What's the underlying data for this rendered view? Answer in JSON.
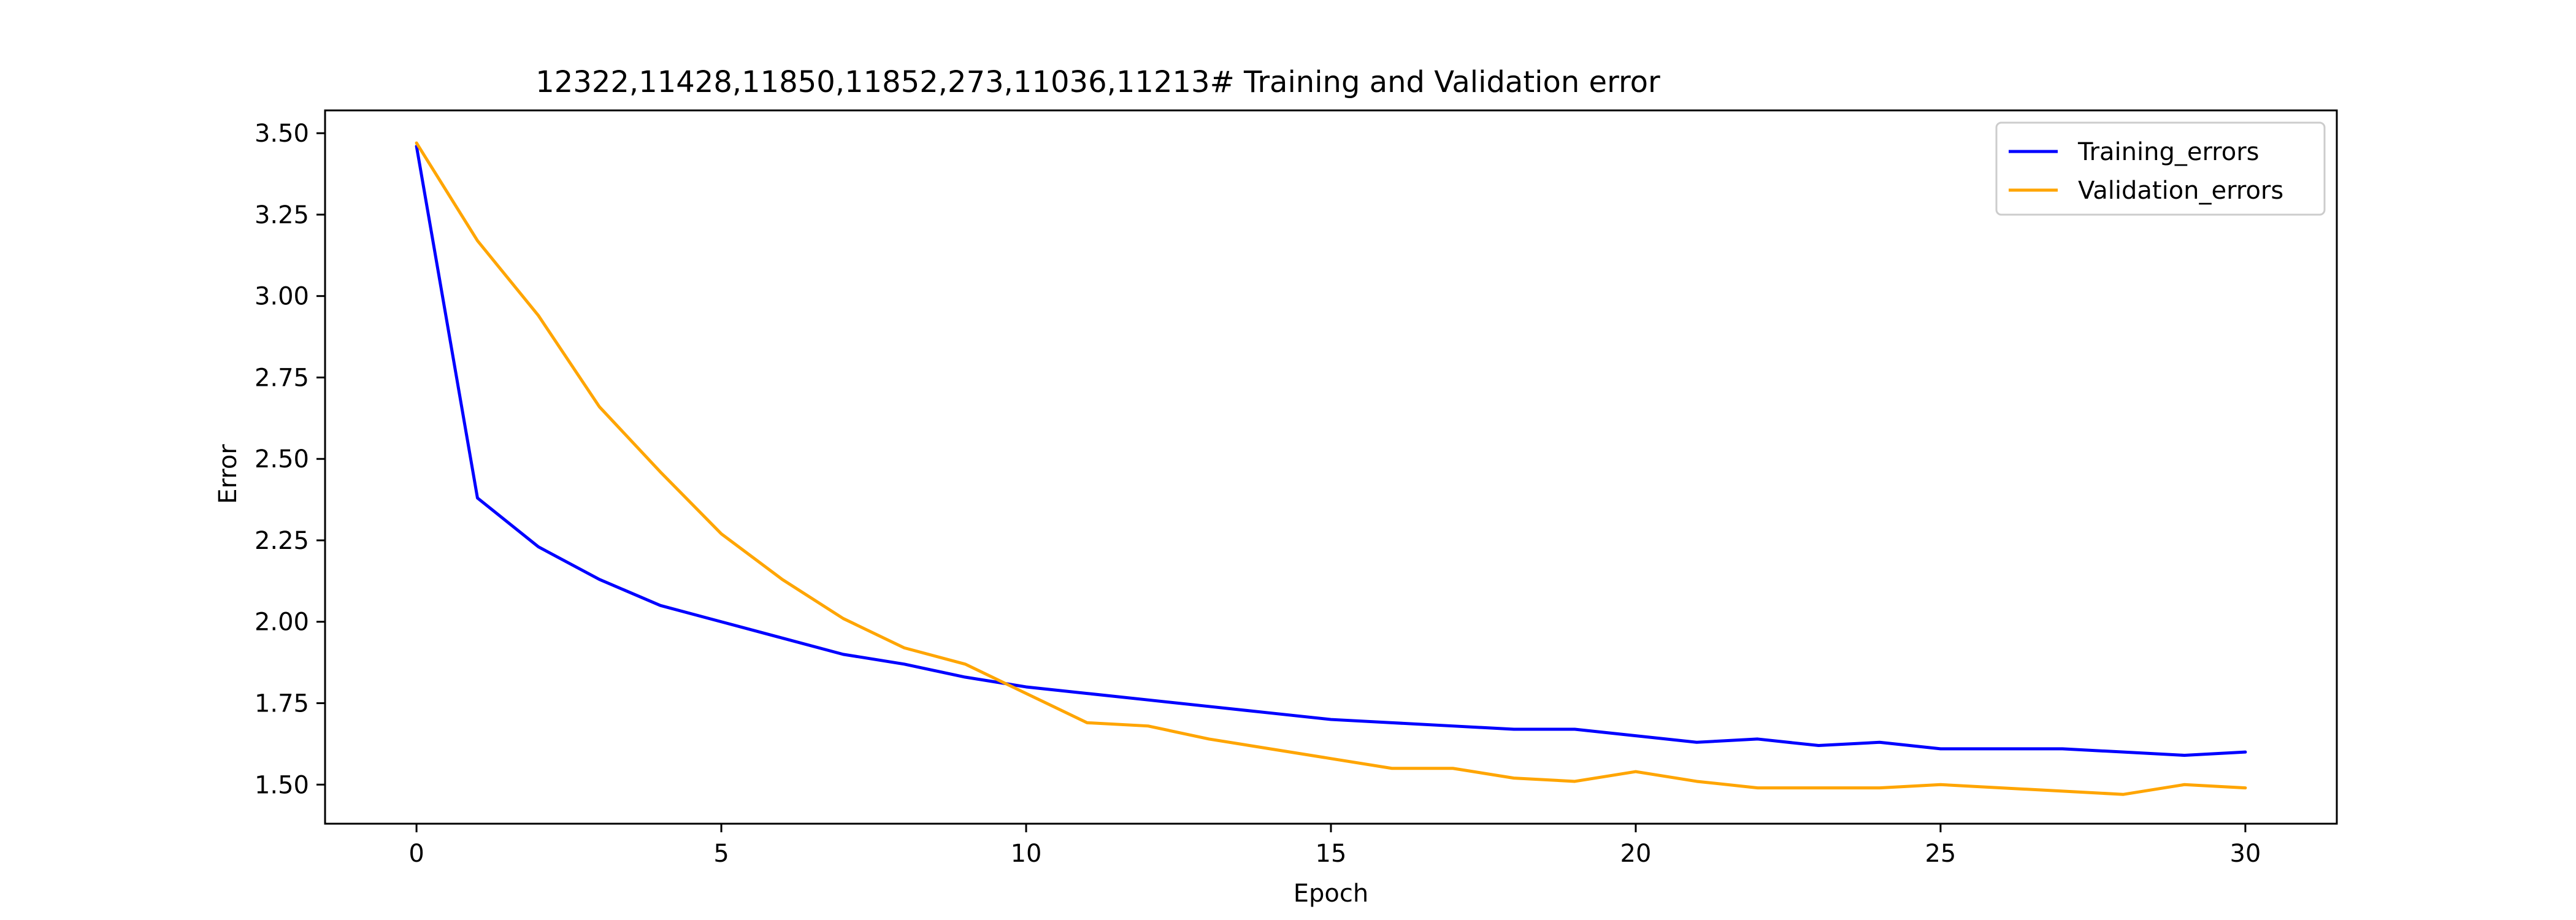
{
  "chart_data": {
    "type": "line",
    "title": "12322,11428,11850,11852,273,11036,11213# Training and Validation error",
    "xlabel": "Epoch",
    "ylabel": "Error",
    "xlim": [
      -1.5,
      31.5
    ],
    "ylim": [
      1.38,
      3.57
    ],
    "x_ticks": [
      0,
      5,
      10,
      15,
      20,
      25,
      30
    ],
    "y_ticks": [
      1.5,
      1.75,
      2.0,
      2.25,
      2.5,
      2.75,
      3.0,
      3.25,
      3.5
    ],
    "y_tick_labels": [
      "1.50",
      "1.75",
      "2.00",
      "2.25",
      "2.50",
      "2.75",
      "3.00",
      "3.25",
      "3.50"
    ],
    "x_tick_labels": [
      "0",
      "5",
      "10",
      "15",
      "20",
      "25",
      "30"
    ],
    "grid": false,
    "legend_position": "top-right",
    "x": [
      0,
      1,
      2,
      3,
      4,
      5,
      6,
      7,
      8,
      9,
      10,
      11,
      12,
      13,
      14,
      15,
      16,
      17,
      18,
      19,
      20,
      21,
      22,
      23,
      24,
      25,
      26,
      27,
      28,
      29,
      30
    ],
    "series": [
      {
        "name": "Training_errors",
        "color": "#0000ff",
        "values": [
          3.46,
          2.38,
          2.23,
          2.13,
          2.05,
          2.0,
          1.95,
          1.9,
          1.87,
          1.83,
          1.8,
          1.78,
          1.76,
          1.74,
          1.72,
          1.7,
          1.69,
          1.68,
          1.67,
          1.67,
          1.65,
          1.63,
          1.64,
          1.62,
          1.63,
          1.61,
          1.61,
          1.61,
          1.6,
          1.59,
          1.6
        ]
      },
      {
        "name": "Validation_errors",
        "color": "#ffa500",
        "values": [
          3.47,
          3.17,
          2.94,
          2.66,
          2.46,
          2.27,
          2.13,
          2.01,
          1.92,
          1.87,
          1.78,
          1.69,
          1.68,
          1.64,
          1.61,
          1.58,
          1.55,
          1.55,
          1.52,
          1.51,
          1.54,
          1.51,
          1.49,
          1.49,
          1.49,
          1.5,
          1.49,
          1.48,
          1.47,
          1.5,
          1.49
        ]
      }
    ]
  }
}
